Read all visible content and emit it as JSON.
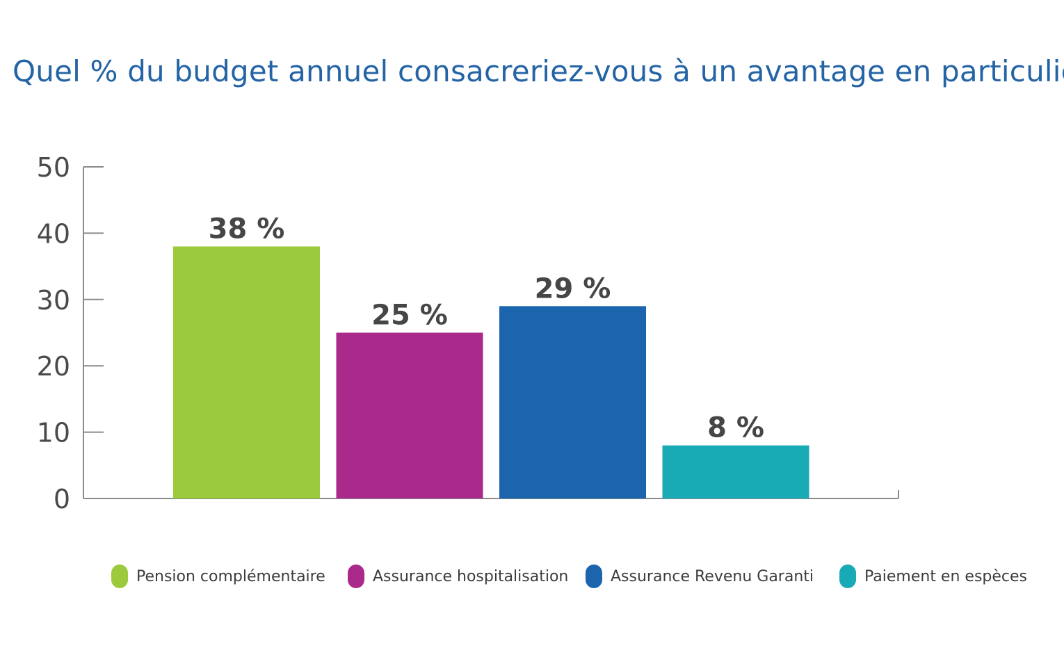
{
  "chart_data": {
    "type": "bar",
    "title": "Quel % du budget annuel consacreriez-vous à un avantage en particulier ?",
    "xlabel": "",
    "ylabel": "",
    "ylim": [
      0,
      50
    ],
    "yticks": [
      0,
      10,
      20,
      30,
      40,
      50
    ],
    "grid": false,
    "legend_position": "bottom",
    "categories": [
      "Pension complémentaire",
      "Assurance hospitalisation",
      "Assurance Revenu Garanti",
      "Paiement en espèces"
    ],
    "values": [
      38,
      25,
      29,
      8
    ],
    "data_labels": [
      "38 %",
      "25 %",
      "29 %",
      "8 %"
    ],
    "colors": [
      "#9bca3c",
      "#aa2a8c",
      "#1b64ae",
      "#18aab5"
    ]
  }
}
